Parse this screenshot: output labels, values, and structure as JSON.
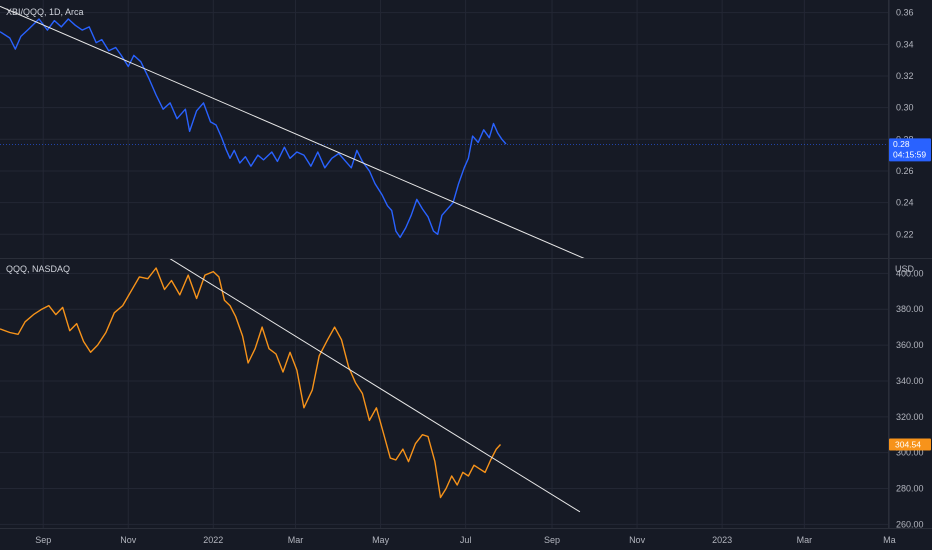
{
  "colors": {
    "background": "#161a25",
    "grid": "#232734",
    "axis_text": "#b2b5be",
    "ratio_line": "#2962ff",
    "qqq_line": "#f7931a",
    "trendline": "#e8e8e8",
    "ratio_badge": "#2962ff",
    "qqq_badge": "#f7931a"
  },
  "time_axis": {
    "labels": [
      "Sep",
      "Nov",
      "2022",
      "Mar",
      "May",
      "Jul",
      "Sep",
      "Nov",
      "2023",
      "Mar",
      "Ma"
    ]
  },
  "chart_data": [
    {
      "type": "line",
      "title": "XBI/QQQ, 1D, Arca",
      "ylim": [
        0.205,
        0.368
      ],
      "y_ticks": [
        "0.36",
        "0.34",
        "0.32",
        "0.30",
        "0.28",
        "0.26",
        "0.24",
        "0.22"
      ],
      "last_value_label": "0.28",
      "countdown_label": "04:15:59",
      "last_value": 0.2768,
      "x_range": [
        "2021-08-01",
        "2023-04-30"
      ],
      "series": [
        {
          "points": [
            [
              "2021-08-01",
              0.348
            ],
            [
              "2021-08-08",
              0.344
            ],
            [
              "2021-08-12",
              0.337
            ],
            [
              "2021-08-16",
              0.345
            ],
            [
              "2021-08-22",
              0.35
            ],
            [
              "2021-08-29",
              0.356
            ],
            [
              "2021-09-04",
              0.349
            ],
            [
              "2021-09-09",
              0.355
            ],
            [
              "2021-09-14",
              0.351
            ],
            [
              "2021-09-19",
              0.356
            ],
            [
              "2021-09-24",
              0.352
            ],
            [
              "2021-09-29",
              0.349
            ],
            [
              "2021-10-04",
              0.351
            ],
            [
              "2021-10-09",
              0.341
            ],
            [
              "2021-10-13",
              0.343
            ],
            [
              "2021-10-18",
              0.336
            ],
            [
              "2021-10-23",
              0.338
            ],
            [
              "2021-10-27",
              0.333
            ],
            [
              "2021-11-01",
              0.326
            ],
            [
              "2021-11-05",
              0.333
            ],
            [
              "2021-11-10",
              0.329
            ],
            [
              "2021-11-16",
              0.318
            ],
            [
              "2021-11-21",
              0.308
            ],
            [
              "2021-11-26",
              0.299
            ],
            [
              "2021-12-01",
              0.303
            ],
            [
              "2021-12-06",
              0.293
            ],
            [
              "2021-12-12",
              0.299
            ],
            [
              "2021-12-15",
              0.285
            ],
            [
              "2021-12-20",
              0.298
            ],
            [
              "2021-12-25",
              0.303
            ],
            [
              "2021-12-30",
              0.291
            ],
            [
              "2022-01-03",
              0.289
            ],
            [
              "2022-01-07",
              0.281
            ],
            [
              "2022-01-10",
              0.274
            ],
            [
              "2022-01-13",
              0.268
            ],
            [
              "2022-01-16",
              0.273
            ],
            [
              "2022-01-20",
              0.265
            ],
            [
              "2022-01-24",
              0.269
            ],
            [
              "2022-01-28",
              0.263
            ],
            [
              "2022-02-02",
              0.27
            ],
            [
              "2022-02-06",
              0.267
            ],
            [
              "2022-02-12",
              0.272
            ],
            [
              "2022-02-16",
              0.266
            ],
            [
              "2022-02-21",
              0.275
            ],
            [
              "2022-02-25",
              0.268
            ],
            [
              "2022-03-02",
              0.272
            ],
            [
              "2022-03-07",
              0.27
            ],
            [
              "2022-03-12",
              0.263
            ],
            [
              "2022-03-17",
              0.272
            ],
            [
              "2022-03-22",
              0.262
            ],
            [
              "2022-03-27",
              0.268
            ],
            [
              "2022-04-01",
              0.271
            ],
            [
              "2022-04-06",
              0.266
            ],
            [
              "2022-04-10",
              0.262
            ],
            [
              "2022-04-14",
              0.273
            ],
            [
              "2022-04-18",
              0.266
            ],
            [
              "2022-04-23",
              0.26
            ],
            [
              "2022-04-27",
              0.252
            ],
            [
              "2022-05-02",
              0.245
            ],
            [
              "2022-05-06",
              0.238
            ],
            [
              "2022-05-09",
              0.235
            ],
            [
              "2022-05-12",
              0.222
            ],
            [
              "2022-05-15",
              0.218
            ],
            [
              "2022-05-19",
              0.224
            ],
            [
              "2022-05-23",
              0.232
            ],
            [
              "2022-05-27",
              0.242
            ],
            [
              "2022-05-31",
              0.236
            ],
            [
              "2022-06-04",
              0.231
            ],
            [
              "2022-06-08",
              0.222
            ],
            [
              "2022-06-11",
              0.22
            ],
            [
              "2022-06-14",
              0.232
            ],
            [
              "2022-06-18",
              0.236
            ],
            [
              "2022-06-22",
              0.24
            ],
            [
              "2022-06-26",
              0.252
            ],
            [
              "2022-06-30",
              0.262
            ],
            [
              "2022-07-03",
              0.268
            ],
            [
              "2022-07-06",
              0.282
            ],
            [
              "2022-07-10",
              0.278
            ],
            [
              "2022-07-14",
              0.286
            ],
            [
              "2022-07-18",
              0.281
            ],
            [
              "2022-07-21",
              0.29
            ],
            [
              "2022-07-24",
              0.284
            ],
            [
              "2022-07-27",
              0.28
            ],
            [
              "2022-07-30",
              0.277
            ]
          ]
        }
      ],
      "trendline": [
        [
          "2021-08-01",
          0.364
        ],
        [
          "2022-09-26",
          0.204
        ]
      ]
    },
    {
      "type": "line",
      "title": "QQQ, NASDAQ",
      "y_unit": "USD",
      "ylim": [
        258,
        408
      ],
      "y_ticks": [
        "400.00",
        "380.00",
        "360.00",
        "340.00",
        "320.00",
        "300.00",
        "280.00",
        "260.00"
      ],
      "last_value_label": "304.54",
      "last_value": 304.54,
      "x_range": [
        "2021-08-01",
        "2023-04-30"
      ],
      "series": [
        {
          "points": [
            [
              "2021-08-01",
              369
            ],
            [
              "2021-08-08",
              367
            ],
            [
              "2021-08-14",
              366
            ],
            [
              "2021-08-19",
              373
            ],
            [
              "2021-08-25",
              377
            ],
            [
              "2021-08-31",
              380
            ],
            [
              "2021-09-05",
              382
            ],
            [
              "2021-09-10",
              377
            ],
            [
              "2021-09-15",
              381
            ],
            [
              "2021-09-20",
              368
            ],
            [
              "2021-09-25",
              372
            ],
            [
              "2021-09-30",
              362
            ],
            [
              "2021-10-05",
              356
            ],
            [
              "2021-10-10",
              360
            ],
            [
              "2021-10-16",
              367
            ],
            [
              "2021-10-22",
              378
            ],
            [
              "2021-10-28",
              382
            ],
            [
              "2021-11-03",
              390
            ],
            [
              "2021-11-09",
              398
            ],
            [
              "2021-11-15",
              397
            ],
            [
              "2021-11-21",
              403
            ],
            [
              "2021-11-27",
              391
            ],
            [
              "2021-12-02",
              396
            ],
            [
              "2021-12-08",
              388
            ],
            [
              "2021-12-14",
              399
            ],
            [
              "2021-12-20",
              386
            ],
            [
              "2021-12-26",
              399
            ],
            [
              "2022-01-01",
              401
            ],
            [
              "2022-01-05",
              398
            ],
            [
              "2022-01-09",
              385
            ],
            [
              "2022-01-13",
              382
            ],
            [
              "2022-01-17",
              376
            ],
            [
              "2022-01-22",
              365
            ],
            [
              "2022-01-26",
              350
            ],
            [
              "2022-01-31",
              358
            ],
            [
              "2022-02-05",
              370
            ],
            [
              "2022-02-10",
              358
            ],
            [
              "2022-02-15",
              355
            ],
            [
              "2022-02-20",
              345
            ],
            [
              "2022-02-25",
              356
            ],
            [
              "2022-03-02",
              346
            ],
            [
              "2022-03-07",
              325
            ],
            [
              "2022-03-13",
              335
            ],
            [
              "2022-03-18",
              354
            ],
            [
              "2022-03-24",
              363
            ],
            [
              "2022-03-29",
              370
            ],
            [
              "2022-04-03",
              363
            ],
            [
              "2022-04-08",
              348
            ],
            [
              "2022-04-13",
              339
            ],
            [
              "2022-04-18",
              333
            ],
            [
              "2022-04-23",
              318
            ],
            [
              "2022-04-28",
              325
            ],
            [
              "2022-05-03",
              311
            ],
            [
              "2022-05-08",
              297
            ],
            [
              "2022-05-12",
              296
            ],
            [
              "2022-05-17",
              302
            ],
            [
              "2022-05-21",
              295
            ],
            [
              "2022-05-26",
              305
            ],
            [
              "2022-05-31",
              310
            ],
            [
              "2022-06-04",
              309
            ],
            [
              "2022-06-09",
              295
            ],
            [
              "2022-06-13",
              275
            ],
            [
              "2022-06-17",
              280
            ],
            [
              "2022-06-21",
              287
            ],
            [
              "2022-06-25",
              282
            ],
            [
              "2022-06-29",
              289
            ],
            [
              "2022-07-03",
              287
            ],
            [
              "2022-07-07",
              293
            ],
            [
              "2022-07-11",
              291
            ],
            [
              "2022-07-15",
              289
            ],
            [
              "2022-07-19",
              296
            ],
            [
              "2022-07-23",
              302
            ],
            [
              "2022-07-26",
              304.54
            ]
          ]
        }
      ],
      "trendline": [
        [
          "2021-11-23",
          412
        ],
        [
          "2022-09-21",
          267
        ]
      ]
    }
  ]
}
